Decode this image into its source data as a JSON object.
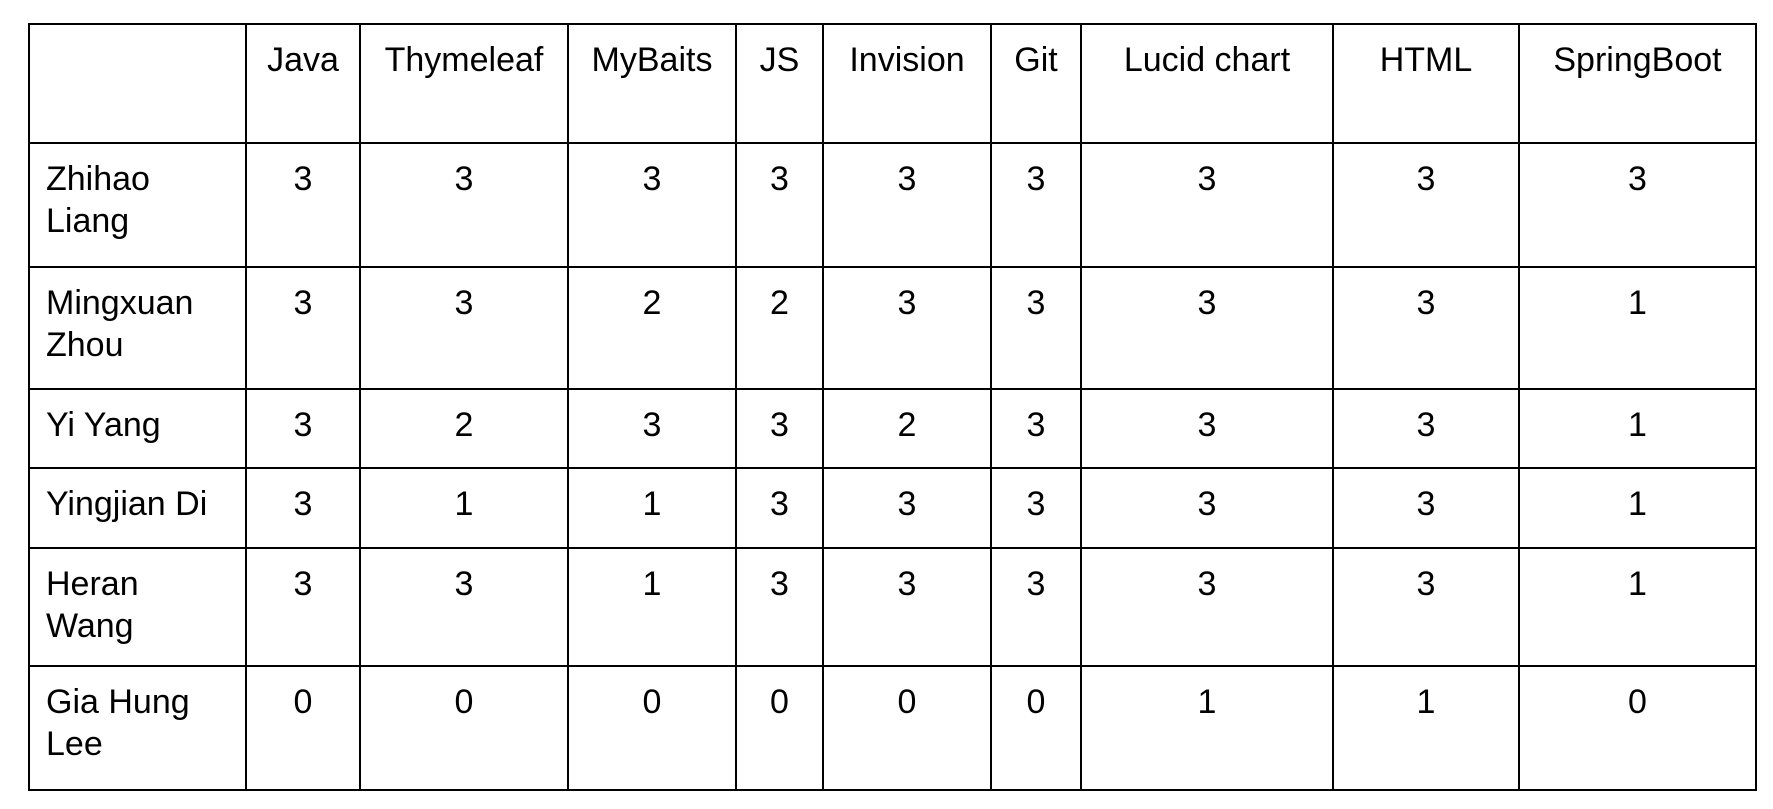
{
  "table": {
    "corner": "",
    "columns": [
      "Java",
      "Thymeleaf",
      "MyBaits",
      "JS",
      "Invision",
      "Git",
      "Lucid chart",
      "HTML",
      "SpringBoot"
    ],
    "rows": [
      {
        "name": "Zhihao Liang",
        "values": [
          "3",
          "3",
          "3",
          "3",
          "3",
          "3",
          "3",
          "3",
          "3"
        ]
      },
      {
        "name": "Mingxuan Zhou",
        "values": [
          "3",
          "3",
          "2",
          "2",
          "3",
          "3",
          "3",
          "3",
          "1"
        ]
      },
      {
        "name": "Yi Yang",
        "values": [
          "3",
          "2",
          "3",
          "3",
          "2",
          "3",
          "3",
          "3",
          "1"
        ]
      },
      {
        "name": "Yingjian Di",
        "values": [
          "3",
          "1",
          "1",
          "3",
          "3",
          "3",
          "3",
          "3",
          "1"
        ]
      },
      {
        "name": "Heran Wang",
        "values": [
          "3",
          "3",
          "1",
          "3",
          "3",
          "3",
          "3",
          "3",
          "1"
        ]
      },
      {
        "name": "Gia Hung Lee",
        "values": [
          "0",
          "0",
          "0",
          "0",
          "0",
          "0",
          "1",
          "1",
          "0"
        ]
      }
    ]
  }
}
